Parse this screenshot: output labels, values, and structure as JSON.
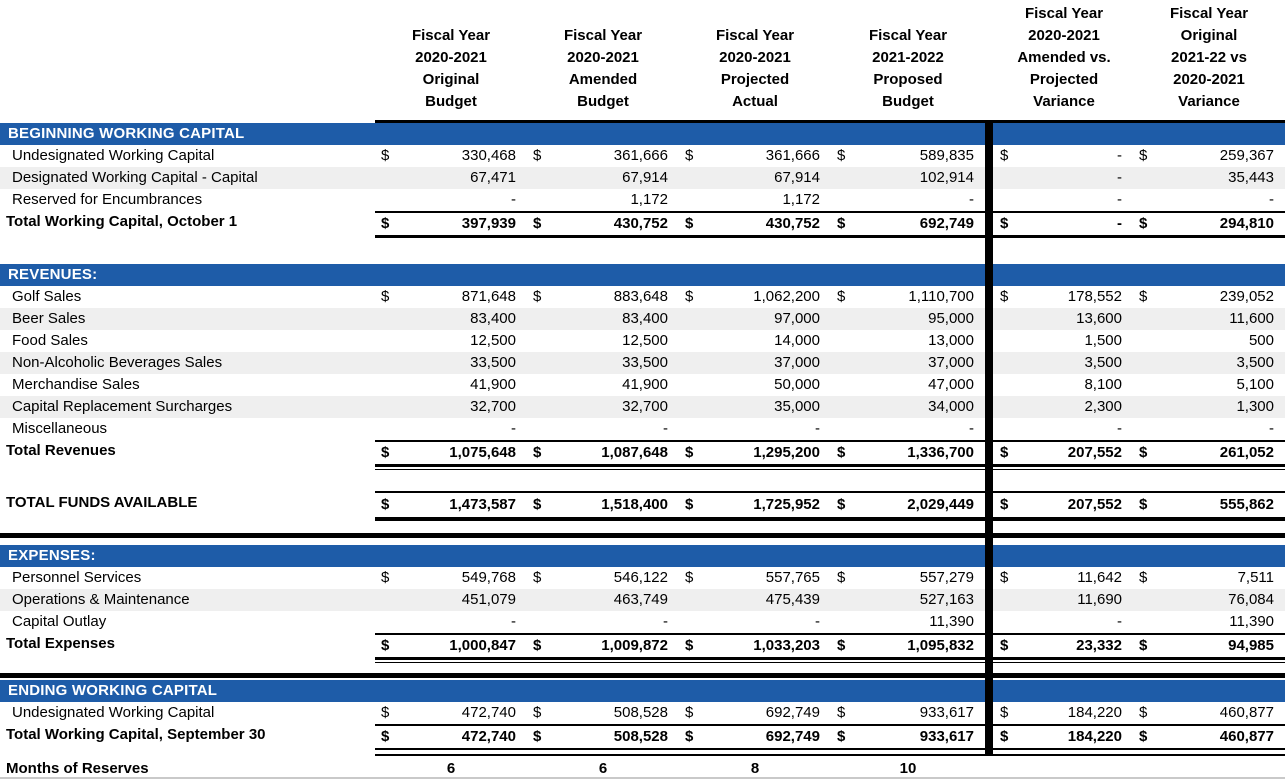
{
  "colors": {
    "section_bar": "#1E5CA8",
    "alt_row": "#EFEFEF",
    "divider": "#000000",
    "bottom_rule": "#C9C9C9"
  },
  "columns": [
    {
      "key": "fy2021_original",
      "header": "Fiscal Year\n2020-2021\nOriginal\nBudget"
    },
    {
      "key": "fy2021_amended",
      "header": "Fiscal Year\n2020-2021\nAmended\nBudget"
    },
    {
      "key": "fy2021_projected",
      "header": "Fiscal Year\n2020-2021\nProjected\nActual"
    },
    {
      "key": "fy2122_proposed",
      "header": "Fiscal Year\n2021-2022\nProposed\nBudget"
    },
    {
      "key": "amended_vs_projected_variance",
      "header": "Fiscal Year\n2020-2021\nAmended vs.\nProjected\nVariance"
    },
    {
      "key": "original_2122_vs_2021_variance",
      "header": "Fiscal Year\nOriginal\n2021-22 vs\n2020-2021\nVariance"
    }
  ],
  "sections": [
    {
      "title": "BEGINNING WORKING CAPITAL",
      "rows": [
        {
          "label": "Undesignated Working Capital",
          "dollar": true,
          "shaded": false,
          "values": [
            "330,468",
            "361,666",
            "361,666",
            "589,835",
            "-",
            "259,367"
          ]
        },
        {
          "label": "Designated Working Capital - Capital",
          "dollar": false,
          "shaded": true,
          "values": [
            "67,471",
            "67,914",
            "67,914",
            "102,914",
            "-",
            "35,443"
          ]
        },
        {
          "label": "Reserved for Encumbrances",
          "dollar": false,
          "shaded": false,
          "values": [
            "-",
            "1,172",
            "1,172",
            "-",
            "-",
            "-"
          ]
        },
        {
          "label": "Total Working Capital, October 1",
          "dollar": true,
          "total": true,
          "underline": "single",
          "values": [
            "397,939",
            "430,752",
            "430,752",
            "692,749",
            "-",
            "294,810"
          ]
        }
      ]
    },
    {
      "title": "REVENUES:",
      "rows": [
        {
          "label": "Golf Sales",
          "dollar": true,
          "shaded": false,
          "values": [
            "871,648",
            "883,648",
            "1,062,200",
            "1,110,700",
            "178,552",
            "239,052"
          ]
        },
        {
          "label": "Beer Sales",
          "dollar": false,
          "shaded": true,
          "values": [
            "83,400",
            "83,400",
            "97,000",
            "95,000",
            "13,600",
            "11,600"
          ]
        },
        {
          "label": "Food Sales",
          "dollar": false,
          "shaded": false,
          "values": [
            "12,500",
            "12,500",
            "14,000",
            "13,000",
            "1,500",
            "500"
          ]
        },
        {
          "label": "Non-Alcoholic Beverages Sales",
          "dollar": false,
          "shaded": true,
          "values": [
            "33,500",
            "33,500",
            "37,000",
            "37,000",
            "3,500",
            "3,500"
          ]
        },
        {
          "label": "Merchandise Sales",
          "dollar": false,
          "shaded": false,
          "values": [
            "41,900",
            "41,900",
            "50,000",
            "47,000",
            "8,100",
            "5,100"
          ]
        },
        {
          "label": "Capital Replacement Surcharges",
          "dollar": false,
          "shaded": true,
          "values": [
            "32,700",
            "32,700",
            "35,000",
            "34,000",
            "2,300",
            "1,300"
          ]
        },
        {
          "label": "Miscellaneous",
          "dollar": false,
          "shaded": false,
          "values": [
            "-",
            "-",
            "-",
            "-",
            "-",
            "-"
          ]
        },
        {
          "label": "Total Revenues",
          "dollar": true,
          "total": true,
          "underline": "double",
          "values": [
            "1,075,648",
            "1,087,648",
            "1,295,200",
            "1,336,700",
            "207,552",
            "261,052"
          ]
        }
      ]
    },
    {
      "title": "EXPENSES:",
      "rows": [
        {
          "label": "Personnel Services",
          "dollar": true,
          "shaded": false,
          "values": [
            "549,768",
            "546,122",
            "557,765",
            "557,279",
            "11,642",
            "7,511"
          ]
        },
        {
          "label": "Operations & Maintenance",
          "dollar": false,
          "shaded": true,
          "values": [
            "451,079",
            "463,749",
            "475,439",
            "527,163",
            "11,690",
            "76,084"
          ]
        },
        {
          "label": "Capital Outlay",
          "dollar": false,
          "shaded": false,
          "values": [
            "-",
            "-",
            "-",
            "11,390",
            "-",
            "11,390"
          ]
        },
        {
          "label": "Total Expenses",
          "dollar": true,
          "total": true,
          "underline": "double",
          "values": [
            "1,000,847",
            "1,009,872",
            "1,033,203",
            "1,095,832",
            "23,332",
            "94,985"
          ]
        }
      ]
    },
    {
      "title": "ENDING WORKING CAPITAL",
      "rows": [
        {
          "label": "Undesignated Working Capital",
          "dollar": true,
          "shaded": false,
          "values": [
            "472,740",
            "508,528",
            "692,749",
            "933,617",
            "184,220",
            "460,877"
          ]
        },
        {
          "label": "Total Working Capital, September 30",
          "dollar": true,
          "total": true,
          "underline": "double_wide",
          "values": [
            "472,740",
            "508,528",
            "692,749",
            "933,617",
            "184,220",
            "460,877"
          ]
        }
      ]
    }
  ],
  "total_funds_row": {
    "label": "TOTAL FUNDS AVAILABLE",
    "dollar": true,
    "total": true,
    "underline": "thick",
    "values": [
      "1,473,587",
      "1,518,400",
      "1,725,952",
      "2,029,449",
      "207,552",
      "555,862"
    ]
  },
  "months_row": {
    "label": "Months of Reserves",
    "values": [
      "6",
      "6",
      "8",
      "10",
      "",
      ""
    ]
  }
}
